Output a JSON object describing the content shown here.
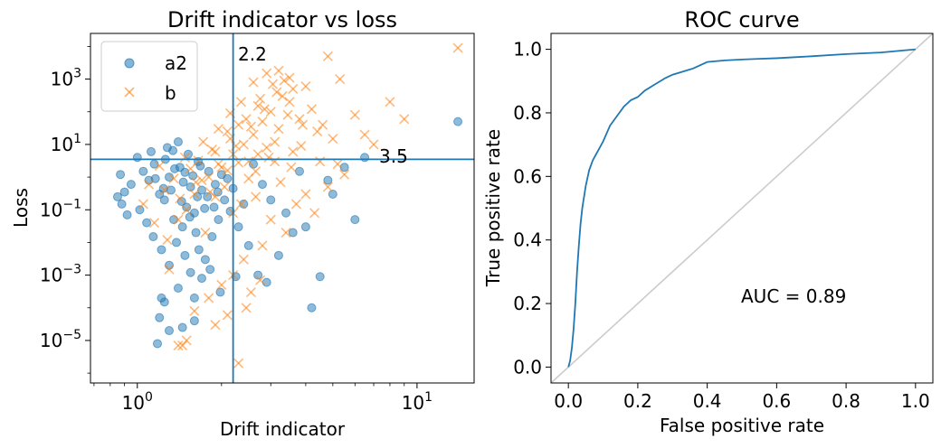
{
  "chart_data": [
    {
      "type": "scatter",
      "title": "Drift indicator vs loss",
      "xlabel": "Drift indicator",
      "ylabel": "Loss",
      "xscale": "log",
      "yscale": "log",
      "xlim": [
        0.68,
        16
      ],
      "ylim": [
        5e-07,
        25000.0
      ],
      "xticks": [
        {
          "base": "10",
          "exp": "0"
        },
        {
          "base": "10",
          "exp": "1"
        }
      ],
      "yticks": [
        {
          "base": "10",
          "exp": "3"
        },
        {
          "base": "10",
          "exp": "1"
        },
        {
          "base": "10",
          "exp": "−1"
        },
        {
          "base": "10",
          "exp": "−3"
        },
        {
          "base": "10",
          "exp": "−5"
        }
      ],
      "vline": 2.2,
      "hline": 3.5,
      "vline_label": "2.2",
      "hline_label": "3.5",
      "line_color": "#1f77b4",
      "legend_position": "upper-left",
      "series": [
        {
          "name": "a2",
          "marker": "circle",
          "color": "#1f77b4",
          "points": [
            [
              1.42,
              2.0
            ],
            [
              1.3,
              1.0
            ],
            [
              1.55,
              0.5
            ],
            [
              1.2,
              0.3
            ],
            [
              1.65,
              3.0
            ],
            [
              1.8,
              1.5
            ],
            [
              1.1,
              0.8
            ],
            [
              1.5,
              0.12
            ],
            [
              1.35,
              0.05
            ],
            [
              1.25,
              0.2
            ],
            [
              1.6,
              0.08
            ],
            [
              1.45,
              0.03
            ],
            [
              1.7,
              0.4
            ],
            [
              1.9,
              0.6
            ],
            [
              2.0,
              1.2
            ],
            [
              2.1,
              0.9
            ],
            [
              1.15,
              2.5
            ],
            [
              1.05,
              1.5
            ],
            [
              0.95,
              0.6
            ],
            [
              0.9,
              0.35
            ],
            [
              0.88,
              0.15
            ],
            [
              0.92,
              0.07
            ],
            [
              1.0,
              4.0
            ],
            [
              1.12,
              6.0
            ],
            [
              1.28,
              8.0
            ],
            [
              1.4,
              12.0
            ],
            [
              1.52,
              5.0
            ],
            [
              1.62,
              0.02
            ],
            [
              1.38,
              0.01
            ],
            [
              1.22,
              0.006
            ],
            [
              1.48,
              0.004
            ],
            [
              1.3,
              0.002
            ],
            [
              1.55,
              0.0012
            ],
            [
              1.7,
              0.0008
            ],
            [
              1.4,
              0.0004
            ],
            [
              1.25,
              0.00015
            ],
            [
              1.2,
              5e-05
            ],
            [
              1.18,
              8e-06
            ],
            [
              1.3,
              2e-05
            ],
            [
              1.45,
              2.5e-05
            ],
            [
              1.6,
              0.0002
            ],
            [
              1.75,
              0.003
            ],
            [
              1.85,
              0.015
            ],
            [
              1.95,
              0.05
            ],
            [
              2.05,
              0.2
            ],
            [
              2.15,
              0.09
            ],
            [
              2.3,
              0.03
            ],
            [
              2.5,
              0.008
            ],
            [
              2.7,
              0.001
            ],
            [
              2.9,
              0.0006
            ],
            [
              3.2,
              0.004
            ],
            [
              3.6,
              0.02
            ],
            [
              4.2,
              0.0001
            ],
            [
              4.5,
              0.0009
            ],
            [
              5.0,
              0.3
            ],
            [
              6.0,
              0.05
            ],
            [
              6.5,
              4.0
            ],
            [
              14.0,
              50.0
            ],
            [
              0.85,
              0.25
            ],
            [
              0.87,
              1.2
            ],
            [
              1.02,
              0.1
            ],
            [
              1.08,
              0.04
            ],
            [
              1.14,
              0.015
            ],
            [
              1.32,
              0.4
            ],
            [
              1.36,
              1.8
            ],
            [
              1.46,
              0.7
            ],
            [
              1.58,
              1.1
            ],
            [
              1.68,
              2.2
            ],
            [
              1.78,
              0.25
            ],
            [
              1.88,
              0.12
            ],
            [
              2.2,
              0.45
            ],
            [
              2.4,
              0.15
            ],
            [
              2.6,
              2.5
            ],
            [
              2.8,
              0.6
            ],
            [
              3.0,
              0.2
            ],
            [
              3.4,
              0.08
            ],
            [
              3.8,
              1.5
            ],
            [
              4.0,
              0.03
            ],
            [
              4.8,
              0.8
            ],
            [
              5.5,
              2.0
            ],
            [
              1.26,
              3.5
            ],
            [
              1.34,
              6.5
            ],
            [
              1.16,
              0.9
            ],
            [
              1.44,
              0.18
            ],
            [
              1.54,
              0.06
            ],
            [
              1.24,
              0.45
            ],
            [
              1.64,
              0.25
            ],
            [
              1.74,
              0.11
            ],
            [
              1.94,
              0.35
            ],
            [
              1.48,
              1.4
            ],
            [
              2.25,
              0.0009
            ],
            [
              1.98,
              0.0003
            ],
            [
              1.82,
              0.0015
            ],
            [
              1.66,
              0.006
            ],
            [
              1.6,
              4e-05
            ],
            [
              1.22,
              0.0002
            ]
          ]
        },
        {
          "name": "b",
          "marker": "x",
          "color": "#ff7f0e",
          "points": [
            [
              2.6,
              20
            ],
            [
              2.8,
              50
            ],
            [
              3.0,
              100
            ],
            [
              3.2,
              30
            ],
            [
              2.4,
              10
            ],
            [
              2.2,
              5
            ],
            [
              2.0,
              2
            ],
            [
              1.8,
              1
            ],
            [
              3.5,
              200
            ],
            [
              3.8,
              60
            ],
            [
              4.2,
              120
            ],
            [
              4.6,
              40
            ],
            [
              5.0,
              15
            ],
            [
              2.9,
              8
            ],
            [
              2.5,
              3
            ],
            [
              3.1,
              12
            ],
            [
              3.3,
              300
            ],
            [
              3.6,
              500
            ],
            [
              2.7,
              150
            ],
            [
              2.3,
              40
            ],
            [
              2.1,
              25
            ],
            [
              1.9,
              6
            ],
            [
              1.7,
              0.8
            ],
            [
              1.6,
              0.3
            ],
            [
              1.5,
              0.1
            ],
            [
              1.4,
              0.05
            ],
            [
              1.75,
              0.02
            ],
            [
              2.05,
              0.5
            ],
            [
              2.35,
              0.15
            ],
            [
              2.65,
              1.5
            ],
            [
              2.95,
              4
            ],
            [
              3.25,
              0.7
            ],
            [
              3.55,
              2
            ],
            [
              3.85,
              9
            ],
            [
              4.5,
              3
            ],
            [
              5.5,
              1.2
            ],
            [
              6.0,
              80
            ],
            [
              6.5,
              20
            ],
            [
              7.0,
              10
            ],
            [
              8.0,
              200
            ],
            [
              9.0,
              60
            ],
            [
              14.0,
              9000
            ],
            [
              3.0,
              0.05
            ],
            [
              3.4,
              0.02
            ],
            [
              2.8,
              0.008
            ],
            [
              2.4,
              0.003
            ],
            [
              2.2,
              0.001
            ],
            [
              2.0,
              0.0005
            ],
            [
              1.8,
              0.0002
            ],
            [
              1.6,
              8e-05
            ],
            [
              1.5,
              1e-05
            ],
            [
              1.45,
              7e-06
            ],
            [
              1.4,
              7e-06
            ],
            [
              1.9,
              3e-05
            ],
            [
              2.1,
              6e-05
            ],
            [
              2.3,
              2e-06
            ],
            [
              2.45,
              0.0001
            ],
            [
              2.55,
              0.0003
            ],
            [
              2.75,
              0.0007
            ],
            [
              1.3,
              0.0015
            ],
            [
              1.25,
              0.4
            ],
            [
              1.55,
              1.8
            ],
            [
              1.65,
              3.2
            ],
            [
              1.85,
              7
            ],
            [
              2.15,
              15
            ],
            [
              2.45,
              60
            ],
            [
              2.75,
              250
            ],
            [
              3.05,
              700
            ],
            [
              3.35,
              900
            ],
            [
              3.15,
              400
            ],
            [
              2.85,
              120
            ],
            [
              2.55,
              35
            ],
            [
              2.25,
              9
            ],
            [
              1.95,
              2.5
            ],
            [
              1.35,
              0.9
            ],
            [
              1.2,
              2.2
            ],
            [
              1.1,
              0.6
            ],
            [
              1.05,
              0.15
            ],
            [
              1.15,
              0.04
            ],
            [
              1.28,
              0.012
            ],
            [
              4.0,
              0.3
            ],
            [
              4.3,
              0.08
            ],
            [
              4.8,
              0.5
            ],
            [
              3.7,
              0.15
            ],
            [
              5.2,
              2.5
            ],
            [
              3.2,
              1800
            ],
            [
              2.9,
              1500
            ],
            [
              3.5,
              1100
            ],
            [
              2.6,
              800
            ],
            [
              4.0,
              600
            ],
            [
              2.35,
              200
            ],
            [
              3.9,
              40
            ],
            [
              4.4,
              25
            ],
            [
              3.45,
              80
            ],
            [
              2.15,
              90
            ],
            [
              1.95,
              30
            ],
            [
              1.72,
              12
            ],
            [
              1.48,
              4
            ],
            [
              2.65,
              0.25
            ],
            [
              2.2,
              0.08
            ],
            [
              1.9,
              0.25
            ],
            [
              2.5,
              0.9
            ],
            [
              2.1,
              1.6
            ],
            [
              2.3,
              2.8
            ],
            [
              3.6,
              6
            ],
            [
              3.1,
              3
            ],
            [
              2.7,
              5
            ],
            [
              1.42,
              0.22
            ],
            [
              1.62,
              0.7
            ],
            [
              1.82,
              0.35
            ],
            [
              4.8,
              5000
            ],
            [
              5.3,
              1000
            ]
          ]
        }
      ]
    },
    {
      "type": "line",
      "title": "ROC curve",
      "xlabel": "False positive rate",
      "ylabel": "True positive rate",
      "xlim": [
        -0.05,
        1.05
      ],
      "ylim": [
        -0.05,
        1.05
      ],
      "xticks": [
        "0.0",
        "0.2",
        "0.4",
        "0.6",
        "0.8",
        "1.0"
      ],
      "yticks": [
        "0.0",
        "0.2",
        "0.4",
        "0.6",
        "0.8",
        "1.0"
      ],
      "annotation": "AUC = 0.89",
      "series": [
        {
          "name": "",
          "color": "#1f77b4",
          "x": [
            0.0,
            0.005,
            0.01,
            0.015,
            0.02,
            0.025,
            0.03,
            0.035,
            0.04,
            0.05,
            0.06,
            0.07,
            0.08,
            0.09,
            0.1,
            0.12,
            0.14,
            0.16,
            0.18,
            0.2,
            0.22,
            0.25,
            0.28,
            0.3,
            0.33,
            0.36,
            0.4,
            0.45,
            0.5,
            0.55,
            0.6,
            0.7,
            0.8,
            0.9,
            0.95,
            1.0
          ],
          "y": [
            0.0,
            0.02,
            0.06,
            0.12,
            0.2,
            0.3,
            0.38,
            0.45,
            0.5,
            0.57,
            0.62,
            0.65,
            0.67,
            0.69,
            0.71,
            0.76,
            0.79,
            0.82,
            0.84,
            0.85,
            0.87,
            0.89,
            0.91,
            0.92,
            0.93,
            0.94,
            0.96,
            0.965,
            0.968,
            0.97,
            0.972,
            0.978,
            0.985,
            0.99,
            0.995,
            1.0
          ]
        },
        {
          "name": "",
          "color": "#cccccc",
          "x": [
            -0.05,
            1.05
          ],
          "y": [
            -0.05,
            1.05
          ]
        }
      ]
    }
  ]
}
